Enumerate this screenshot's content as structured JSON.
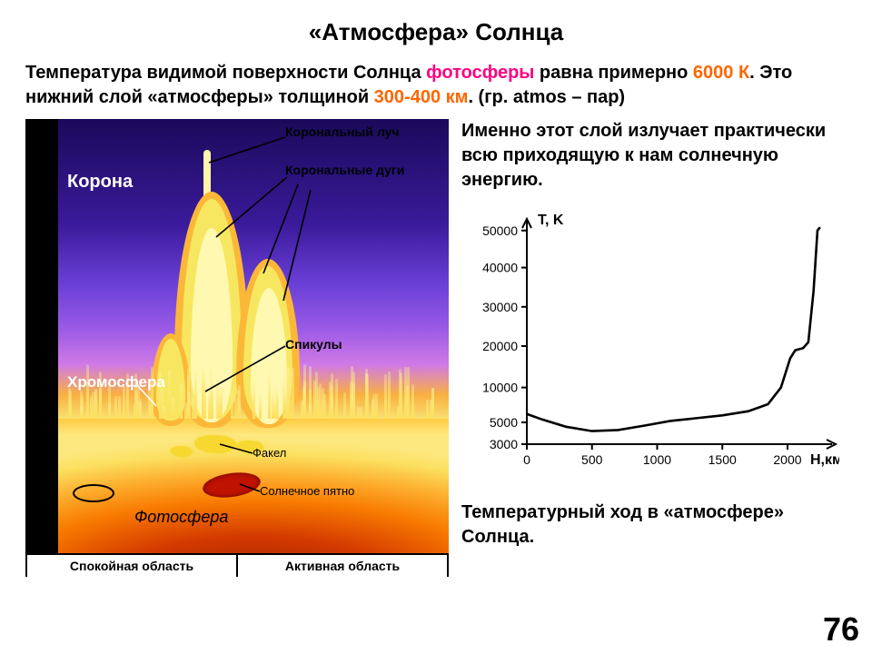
{
  "title": "«Атмосфера» Солнца",
  "intro": {
    "p1a": "Температура видимой поверхности Солнца ",
    "p1_hl1": "фотосферы",
    "p1b": " равна примерно ",
    "p1_hl2a": "6000 К",
    "p1c": ". Это нижний слой «атмосферы» толщиной ",
    "p1_hl2b": "300-400 км",
    "p1d": ". (гр. atmos – пар)"
  },
  "right_text": "Именно этот слой излучает практически всю приходящую к нам солнечную энергию.",
  "diagram": {
    "labels": {
      "corona": "Корона",
      "chromosphere": "Хромосфера",
      "coronal_ray": "Корональный луч",
      "coronal_arcs": "Корональные дуги",
      "spicules": "Спикулы",
      "facula": "Факел",
      "sunspot": "Солнечное пятно",
      "photosphere": "Фотосфера"
    },
    "regions": {
      "quiet": "Спокойная область",
      "active": "Активная область"
    },
    "colors": {
      "sky_top": "#1a0a5a",
      "sky_mid": "#6a3fd6",
      "sky_low": "#d07ae6",
      "prom_outer": "#fbb838",
      "prom_inner": "#f7e760",
      "prom_core": "#fef8b0",
      "surface_hot": "#f87a00",
      "surface_deep": "#a02000",
      "spot": "#c01200",
      "facula": "#f7d830"
    }
  },
  "chart": {
    "type": "line",
    "y_label": "T, K",
    "x_label": "Н,км",
    "x_ticks": [
      0,
      500,
      1000,
      1500,
      2000
    ],
    "y_ticks": [
      3000,
      5000,
      10000,
      20000,
      30000,
      40000,
      50000
    ],
    "y_scale": "broken-log-like",
    "xlim": [
      0,
      2300
    ],
    "ylim": [
      3000,
      58000
    ],
    "data": [
      {
        "x": 0,
        "y": 6200
      },
      {
        "x": 120,
        "y": 5400
      },
      {
        "x": 300,
        "y": 4600
      },
      {
        "x": 500,
        "y": 4200
      },
      {
        "x": 700,
        "y": 4300
      },
      {
        "x": 900,
        "y": 4700
      },
      {
        "x": 1100,
        "y": 5200
      },
      {
        "x": 1300,
        "y": 5600
      },
      {
        "x": 1500,
        "y": 6000
      },
      {
        "x": 1700,
        "y": 6600
      },
      {
        "x": 1850,
        "y": 7600
      },
      {
        "x": 1950,
        "y": 10000
      },
      {
        "x": 2020,
        "y": 17000
      },
      {
        "x": 2060,
        "y": 19000
      },
      {
        "x": 2120,
        "y": 19500
      },
      {
        "x": 2160,
        "y": 21000
      },
      {
        "x": 2200,
        "y": 34000
      },
      {
        "x": 2230,
        "y": 50000
      },
      {
        "x": 2250,
        "y": 56000
      }
    ],
    "line_color": "#000000",
    "line_width": 2.6,
    "axis_color": "#000000",
    "tick_fontsize": 14,
    "label_fontsize": 16,
    "background": "#ffffff"
  },
  "caption": "Температурный ход в «атмосфере» Солнца.",
  "page_number": "76"
}
